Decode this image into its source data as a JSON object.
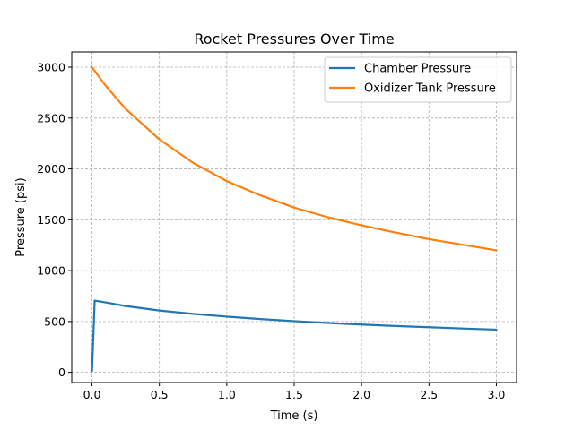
{
  "chart_data": {
    "type": "line",
    "title": "Rocket Pressures Over Time",
    "xlabel": "Time (s)",
    "ylabel": "Pressure (psi)",
    "xlim": [
      -0.15,
      3.15
    ],
    "ylim": [
      -100,
      3150
    ],
    "xticks": [
      0.0,
      0.5,
      1.0,
      1.5,
      2.0,
      2.5,
      3.0
    ],
    "xtick_labels": [
      "0.0",
      "0.5",
      "1.0",
      "1.5",
      "2.0",
      "2.5",
      "3.0"
    ],
    "yticks": [
      0,
      500,
      1000,
      1500,
      2000,
      2500,
      3000
    ],
    "ytick_labels": [
      "0",
      "500",
      "1000",
      "1500",
      "2000",
      "2500",
      "3000"
    ],
    "grid": true,
    "legend_position": "top-right",
    "series": [
      {
        "name": "Chamber Pressure",
        "color": "#1f77b4",
        "x": [
          0.0,
          0.02,
          0.1,
          0.25,
          0.5,
          0.75,
          1.0,
          1.25,
          1.5,
          1.75,
          2.0,
          2.25,
          2.5,
          2.75,
          3.0
        ],
        "y": [
          10,
          705,
          688,
          652,
          608,
          575,
          548,
          524,
          504,
          486,
          470,
          456,
          444,
          431,
          420
        ]
      },
      {
        "name": "Oxidizer Tank Pressure",
        "color": "#ff7f0e",
        "x": [
          0.0,
          0.1,
          0.25,
          0.5,
          0.75,
          1.0,
          1.25,
          1.5,
          1.75,
          2.0,
          2.25,
          2.5,
          2.75,
          3.0
        ],
        "y": [
          3000,
          2820,
          2590,
          2290,
          2060,
          1880,
          1740,
          1620,
          1525,
          1445,
          1375,
          1310,
          1255,
          1200
        ]
      }
    ]
  }
}
